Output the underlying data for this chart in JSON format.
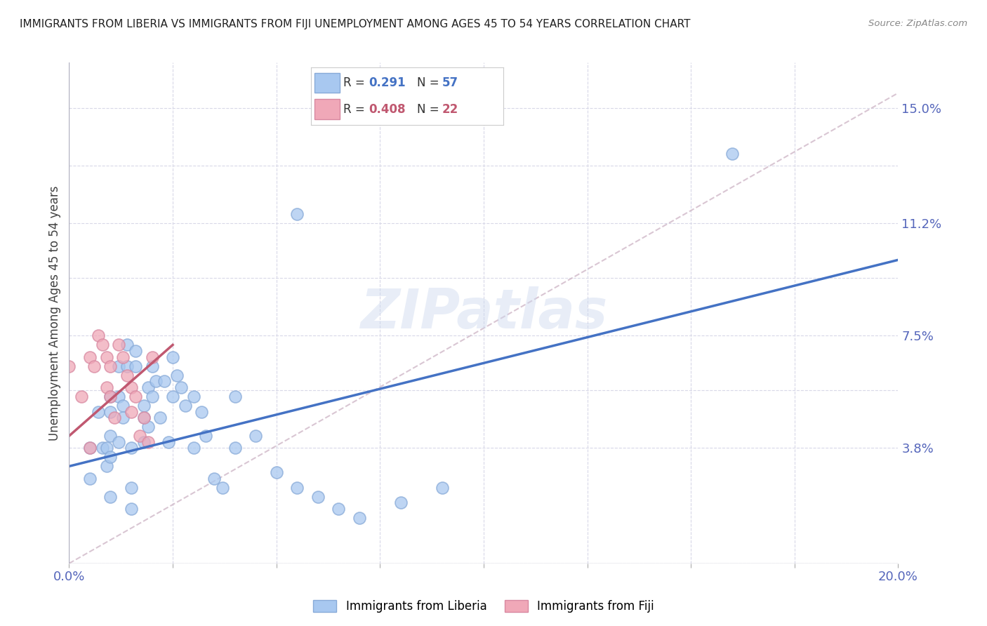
{
  "title": "IMMIGRANTS FROM LIBERIA VS IMMIGRANTS FROM FIJI UNEMPLOYMENT AMONG AGES 45 TO 54 YEARS CORRELATION CHART",
  "source": "Source: ZipAtlas.com",
  "ylabel": "Unemployment Among Ages 45 to 54 years",
  "xlim": [
    0.0,
    0.2
  ],
  "ylim": [
    0.0,
    0.165
  ],
  "xticks": [
    0.0,
    0.025,
    0.05,
    0.075,
    0.1,
    0.125,
    0.15,
    0.175,
    0.2
  ],
  "xticklabels_show": [
    "0.0%",
    "20.0%"
  ],
  "xticklabels_pos": [
    0.0,
    0.2
  ],
  "ytick_labels_right": [
    "",
    "3.8%",
    "",
    "7.5%",
    "",
    "11.2%",
    "",
    "15.0%"
  ],
  "ytick_vals_right": [
    0.0,
    0.038,
    0.057,
    0.075,
    0.094,
    0.112,
    0.131,
    0.15
  ],
  "legend_R1": "0.291",
  "legend_N1": "57",
  "legend_R2": "0.408",
  "legend_N2": "22",
  "liberia_color": "#a8c8f0",
  "liberia_edge_color": "#88aad8",
  "fiji_color": "#f0a8b8",
  "fiji_edge_color": "#d888a0",
  "liberia_line_color": "#4472c4",
  "fiji_line_color": "#c05870",
  "dashed_line_color": "#d0b8c8",
  "watermark": "ZIPatlas",
  "liberia_scatter_x": [
    0.005,
    0.005,
    0.007,
    0.008,
    0.009,
    0.009,
    0.01,
    0.01,
    0.01,
    0.01,
    0.01,
    0.012,
    0.012,
    0.012,
    0.013,
    0.013,
    0.014,
    0.014,
    0.015,
    0.015,
    0.015,
    0.016,
    0.016,
    0.018,
    0.018,
    0.018,
    0.019,
    0.019,
    0.02,
    0.02,
    0.021,
    0.022,
    0.023,
    0.024,
    0.025,
    0.025,
    0.026,
    0.027,
    0.028,
    0.03,
    0.03,
    0.032,
    0.033,
    0.035,
    0.037,
    0.04,
    0.04,
    0.045,
    0.05,
    0.055,
    0.06,
    0.065,
    0.07,
    0.08,
    0.09,
    0.16,
    0.055
  ],
  "liberia_scatter_y": [
    0.038,
    0.028,
    0.05,
    0.038,
    0.038,
    0.032,
    0.055,
    0.05,
    0.042,
    0.035,
    0.022,
    0.065,
    0.055,
    0.04,
    0.052,
    0.048,
    0.072,
    0.065,
    0.038,
    0.025,
    0.018,
    0.07,
    0.065,
    0.052,
    0.048,
    0.04,
    0.058,
    0.045,
    0.065,
    0.055,
    0.06,
    0.048,
    0.06,
    0.04,
    0.068,
    0.055,
    0.062,
    0.058,
    0.052,
    0.055,
    0.038,
    0.05,
    0.042,
    0.028,
    0.025,
    0.055,
    0.038,
    0.042,
    0.03,
    0.025,
    0.022,
    0.018,
    0.015,
    0.02,
    0.025,
    0.135,
    0.115
  ],
  "fiji_scatter_x": [
    0.0,
    0.003,
    0.005,
    0.006,
    0.007,
    0.008,
    0.009,
    0.009,
    0.01,
    0.01,
    0.011,
    0.012,
    0.013,
    0.014,
    0.015,
    0.015,
    0.016,
    0.017,
    0.018,
    0.019,
    0.02,
    0.005
  ],
  "fiji_scatter_y": [
    0.065,
    0.055,
    0.068,
    0.065,
    0.075,
    0.072,
    0.068,
    0.058,
    0.065,
    0.055,
    0.048,
    0.072,
    0.068,
    0.062,
    0.058,
    0.05,
    0.055,
    0.042,
    0.048,
    0.04,
    0.068,
    0.038
  ],
  "liberia_trend_x": [
    0.0,
    0.2
  ],
  "liberia_trend_y": [
    0.032,
    0.1
  ],
  "fiji_trend_x": [
    0.0,
    0.025
  ],
  "fiji_trend_y": [
    0.042,
    0.072
  ],
  "dashed_line_x": [
    0.0,
    0.2
  ],
  "dashed_line_y": [
    0.0,
    0.155
  ]
}
